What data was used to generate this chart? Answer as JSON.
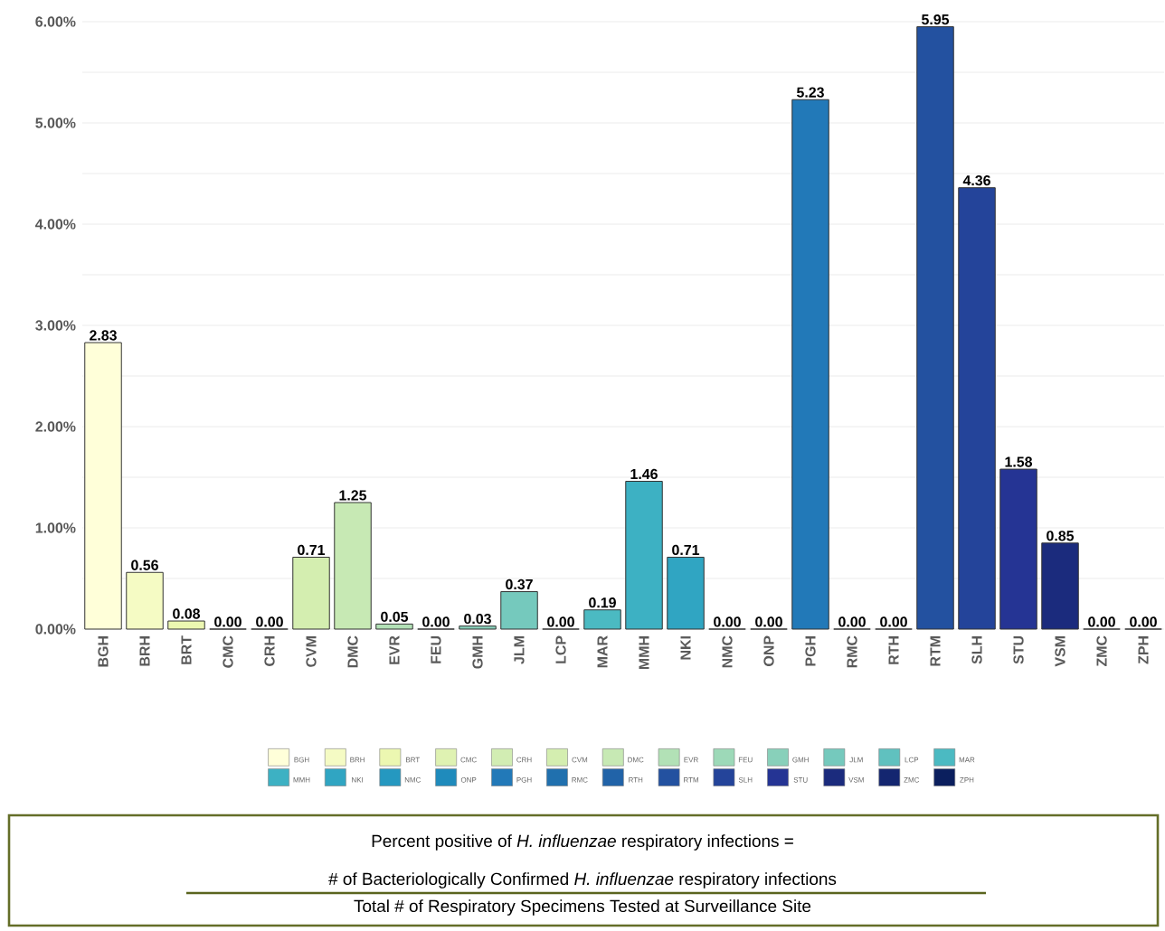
{
  "chart_data": {
    "type": "bar",
    "categories": [
      "BGH",
      "BRH",
      "BRT",
      "CMC",
      "CRH",
      "CVM",
      "DMC",
      "EVR",
      "FEU",
      "GMH",
      "JLM",
      "LCP",
      "MAR",
      "MMH",
      "NKI",
      "NMC",
      "ONP",
      "PGH",
      "RMC",
      "RTH",
      "RTM",
      "SLH",
      "STU",
      "VSM",
      "ZMC",
      "ZPH"
    ],
    "series": [
      {
        "name": "BGH",
        "color": "#ffffd9",
        "values": [
          2.83,
          null,
          null,
          null,
          null,
          null,
          null,
          null,
          null,
          null,
          null,
          null,
          null,
          null,
          null,
          null,
          null,
          null,
          null,
          null,
          null,
          null,
          null,
          null,
          null,
          null
        ],
        "value_labels": [
          "2.83",
          null,
          null,
          null,
          null,
          null,
          null,
          null,
          null,
          null,
          null,
          null,
          null,
          null,
          null,
          null,
          null,
          null,
          null,
          null,
          null,
          null,
          null,
          null,
          null,
          null
        ]
      },
      {
        "name": "BRH",
        "color": "#f5fbc4",
        "values": [
          null,
          0.56,
          null,
          null,
          null,
          null,
          null,
          null,
          null,
          null,
          null,
          null,
          null,
          null,
          null,
          null,
          null,
          null,
          null,
          null,
          null,
          null,
          null,
          null,
          null,
          null
        ],
        "value_labels": [
          null,
          "0.56",
          null,
          null,
          null,
          null,
          null,
          null,
          null,
          null,
          null,
          null,
          null,
          null,
          null,
          null,
          null,
          null,
          null,
          null,
          null,
          null,
          null,
          null,
          null,
          null
        ]
      },
      {
        "name": "BRT",
        "color": "#ecf7b1",
        "values": [
          null,
          null,
          0.08,
          null,
          null,
          null,
          null,
          null,
          null,
          null,
          null,
          null,
          null,
          null,
          null,
          null,
          null,
          null,
          null,
          null,
          null,
          null,
          null,
          null,
          null,
          null
        ],
        "value_labels": [
          null,
          null,
          "0.08",
          null,
          null,
          null,
          null,
          null,
          null,
          null,
          null,
          null,
          null,
          null,
          null,
          null,
          null,
          null,
          null,
          null,
          null,
          null,
          null,
          null,
          null,
          null
        ]
      },
      {
        "name": "CMC",
        "color": "#dff2b2",
        "values": [
          null,
          null,
          null,
          0,
          null,
          null,
          null,
          null,
          null,
          null,
          null,
          null,
          null,
          null,
          null,
          null,
          null,
          null,
          null,
          null,
          null,
          null,
          null,
          null,
          null,
          null
        ],
        "value_labels": [
          null,
          null,
          null,
          "0.00",
          null,
          null,
          null,
          null,
          null,
          null,
          null,
          null,
          null,
          null,
          null,
          null,
          null,
          null,
          null,
          null,
          null,
          null,
          null,
          null,
          null,
          null
        ]
      },
      {
        "name": "CRH",
        "color": "#d2edb3",
        "values": [
          null,
          null,
          null,
          null,
          0,
          null,
          null,
          null,
          null,
          null,
          null,
          null,
          null,
          null,
          null,
          null,
          null,
          null,
          null,
          null,
          null,
          null,
          null,
          null,
          null,
          null
        ],
        "value_labels": [
          null,
          null,
          null,
          null,
          "0.00",
          null,
          null,
          null,
          null,
          null,
          null,
          null,
          null,
          null,
          null,
          null,
          null,
          null,
          null,
          null,
          null,
          null,
          null,
          null,
          null,
          null
        ]
      },
      {
        "name": "CVM",
        "color": "#d4eeb0",
        "values": [
          null,
          null,
          null,
          null,
          null,
          0.71,
          null,
          null,
          null,
          null,
          null,
          null,
          null,
          null,
          null,
          null,
          null,
          null,
          null,
          null,
          null,
          null,
          null,
          null,
          null,
          null
        ],
        "value_labels": [
          null,
          null,
          null,
          null,
          null,
          "0.71",
          null,
          null,
          null,
          null,
          null,
          null,
          null,
          null,
          null,
          null,
          null,
          null,
          null,
          null,
          null,
          null,
          null,
          null,
          null,
          null
        ]
      },
      {
        "name": "DMC",
        "color": "#c7e9b4",
        "values": [
          null,
          null,
          null,
          null,
          null,
          null,
          1.25,
          null,
          null,
          null,
          null,
          null,
          null,
          null,
          null,
          null,
          null,
          null,
          null,
          null,
          null,
          null,
          null,
          null,
          null,
          null
        ],
        "value_labels": [
          null,
          null,
          null,
          null,
          null,
          null,
          "1.25",
          null,
          null,
          null,
          null,
          null,
          null,
          null,
          null,
          null,
          null,
          null,
          null,
          null,
          null,
          null,
          null,
          null,
          null,
          null
        ]
      },
      {
        "name": "EVR",
        "color": "#b2e1b6",
        "values": [
          null,
          null,
          null,
          null,
          null,
          null,
          null,
          0.05,
          null,
          null,
          null,
          null,
          null,
          null,
          null,
          null,
          null,
          null,
          null,
          null,
          null,
          null,
          null,
          null,
          null,
          null
        ],
        "value_labels": [
          null,
          null,
          null,
          null,
          null,
          null,
          null,
          "0.05",
          null,
          null,
          null,
          null,
          null,
          null,
          null,
          null,
          null,
          null,
          null,
          null,
          null,
          null,
          null,
          null,
          null,
          null
        ]
      },
      {
        "name": "FEU",
        "color": "#9dd9b8",
        "values": [
          null,
          null,
          null,
          null,
          null,
          null,
          null,
          null,
          0,
          null,
          null,
          null,
          null,
          null,
          null,
          null,
          null,
          null,
          null,
          null,
          null,
          null,
          null,
          null,
          null,
          null
        ],
        "value_labels": [
          null,
          null,
          null,
          null,
          null,
          null,
          null,
          null,
          "0.00",
          null,
          null,
          null,
          null,
          null,
          null,
          null,
          null,
          null,
          null,
          null,
          null,
          null,
          null,
          null,
          null,
          null
        ]
      },
      {
        "name": "GMH",
        "color": "#88d0ba",
        "values": [
          null,
          null,
          null,
          null,
          null,
          null,
          null,
          null,
          null,
          0.03,
          null,
          null,
          null,
          null,
          null,
          null,
          null,
          null,
          null,
          null,
          null,
          null,
          null,
          null,
          null,
          null
        ],
        "value_labels": [
          null,
          null,
          null,
          null,
          null,
          null,
          null,
          null,
          null,
          "0.03",
          null,
          null,
          null,
          null,
          null,
          null,
          null,
          null,
          null,
          null,
          null,
          null,
          null,
          null,
          null,
          null
        ]
      },
      {
        "name": "JLM",
        "color": "#75c9bd",
        "values": [
          null,
          null,
          null,
          null,
          null,
          null,
          null,
          null,
          null,
          null,
          0.37,
          null,
          null,
          null,
          null,
          null,
          null,
          null,
          null,
          null,
          null,
          null,
          null,
          null,
          null,
          null
        ],
        "value_labels": [
          null,
          null,
          null,
          null,
          null,
          null,
          null,
          null,
          null,
          null,
          "0.37",
          null,
          null,
          null,
          null,
          null,
          null,
          null,
          null,
          null,
          null,
          null,
          null,
          null,
          null,
          null
        ]
      },
      {
        "name": "LCP",
        "color": "#60c1bf",
        "values": [
          null,
          null,
          null,
          null,
          null,
          null,
          null,
          null,
          null,
          null,
          null,
          0,
          null,
          null,
          null,
          null,
          null,
          null,
          null,
          null,
          null,
          null,
          null,
          null,
          null,
          null
        ],
        "value_labels": [
          null,
          null,
          null,
          null,
          null,
          null,
          null,
          null,
          null,
          null,
          null,
          "0.00",
          null,
          null,
          null,
          null,
          null,
          null,
          null,
          null,
          null,
          null,
          null,
          null,
          null,
          null
        ]
      },
      {
        "name": "MAR",
        "color": "#4bbac2",
        "values": [
          null,
          null,
          null,
          null,
          null,
          null,
          null,
          null,
          null,
          null,
          null,
          null,
          0.19,
          null,
          null,
          null,
          null,
          null,
          null,
          null,
          null,
          null,
          null,
          null,
          null,
          null
        ],
        "value_labels": [
          null,
          null,
          null,
          null,
          null,
          null,
          null,
          null,
          null,
          null,
          null,
          null,
          "0.19",
          null,
          null,
          null,
          null,
          null,
          null,
          null,
          null,
          null,
          null,
          null,
          null,
          null
        ]
      },
      {
        "name": "MMH",
        "color": "#3db1c3",
        "values": [
          null,
          null,
          null,
          null,
          null,
          null,
          null,
          null,
          null,
          null,
          null,
          null,
          null,
          1.46,
          null,
          null,
          null,
          null,
          null,
          null,
          null,
          null,
          null,
          null,
          null,
          null
        ],
        "value_labels": [
          null,
          null,
          null,
          null,
          null,
          null,
          null,
          null,
          null,
          null,
          null,
          null,
          null,
          "1.46",
          null,
          null,
          null,
          null,
          null,
          null,
          null,
          null,
          null,
          null,
          null,
          null
        ]
      },
      {
        "name": "NKI",
        "color": "#30a5c2",
        "values": [
          null,
          null,
          null,
          null,
          null,
          null,
          null,
          null,
          null,
          null,
          null,
          null,
          null,
          null,
          0.71,
          null,
          null,
          null,
          null,
          null,
          null,
          null,
          null,
          null,
          null,
          null
        ],
        "value_labels": [
          null,
          null,
          null,
          null,
          null,
          null,
          null,
          null,
          null,
          null,
          null,
          null,
          null,
          null,
          "0.71",
          null,
          null,
          null,
          null,
          null,
          null,
          null,
          null,
          null,
          null,
          null
        ]
      },
      {
        "name": "NMC",
        "color": "#2598c0",
        "values": [
          null,
          null,
          null,
          null,
          null,
          null,
          null,
          null,
          null,
          null,
          null,
          null,
          null,
          null,
          null,
          0,
          null,
          null,
          null,
          null,
          null,
          null,
          null,
          null,
          null,
          null
        ],
        "value_labels": [
          null,
          null,
          null,
          null,
          null,
          null,
          null,
          null,
          null,
          null,
          null,
          null,
          null,
          null,
          null,
          "0.00",
          null,
          null,
          null,
          null,
          null,
          null,
          null,
          null,
          null,
          null
        ]
      },
      {
        "name": "ONP",
        "color": "#1f8bbc",
        "values": [
          null,
          null,
          null,
          null,
          null,
          null,
          null,
          null,
          null,
          null,
          null,
          null,
          null,
          null,
          null,
          null,
          0,
          null,
          null,
          null,
          null,
          null,
          null,
          null,
          null,
          null
        ],
        "value_labels": [
          null,
          null,
          null,
          null,
          null,
          null,
          null,
          null,
          null,
          null,
          null,
          null,
          null,
          null,
          null,
          null,
          "0.00",
          null,
          null,
          null,
          null,
          null,
          null,
          null,
          null,
          null
        ]
      },
      {
        "name": "PGH",
        "color": "#2279b8",
        "values": [
          null,
          null,
          null,
          null,
          null,
          null,
          null,
          null,
          null,
          null,
          null,
          null,
          null,
          null,
          null,
          null,
          null,
          5.23,
          null,
          null,
          null,
          null,
          null,
          null,
          null,
          null
        ],
        "value_labels": [
          null,
          null,
          null,
          null,
          null,
          null,
          null,
          null,
          null,
          null,
          null,
          null,
          null,
          null,
          null,
          null,
          null,
          "5.23",
          null,
          null,
          null,
          null,
          null,
          null,
          null,
          null
        ]
      },
      {
        "name": "RMC",
        "color": "#2070ae",
        "values": [
          null,
          null,
          null,
          null,
          null,
          null,
          null,
          null,
          null,
          null,
          null,
          null,
          null,
          null,
          null,
          null,
          null,
          null,
          0,
          null,
          null,
          null,
          null,
          null,
          null,
          null
        ],
        "value_labels": [
          null,
          null,
          null,
          null,
          null,
          null,
          null,
          null,
          null,
          null,
          null,
          null,
          null,
          null,
          null,
          null,
          null,
          null,
          "0.00",
          null,
          null,
          null,
          null,
          null,
          null,
          null
        ]
      },
      {
        "name": "RTH",
        "color": "#2163a8",
        "values": [
          null,
          null,
          null,
          null,
          null,
          null,
          null,
          null,
          null,
          null,
          null,
          null,
          null,
          null,
          null,
          null,
          null,
          null,
          null,
          0,
          null,
          null,
          null,
          null,
          null,
          null
        ],
        "value_labels": [
          null,
          null,
          null,
          null,
          null,
          null,
          null,
          null,
          null,
          null,
          null,
          null,
          null,
          null,
          null,
          null,
          null,
          null,
          null,
          "0.00",
          null,
          null,
          null,
          null,
          null,
          null
        ]
      },
      {
        "name": "RTM",
        "color": "#2351a0",
        "values": [
          null,
          null,
          null,
          null,
          null,
          null,
          null,
          null,
          null,
          null,
          null,
          null,
          null,
          null,
          null,
          null,
          null,
          null,
          null,
          null,
          5.95,
          null,
          null,
          null,
          null,
          null
        ],
        "value_labels": [
          null,
          null,
          null,
          null,
          null,
          null,
          null,
          null,
          null,
          null,
          null,
          null,
          null,
          null,
          null,
          null,
          null,
          null,
          null,
          null,
          "5.95",
          null,
          null,
          null,
          null,
          null
        ]
      },
      {
        "name": "SLH",
        "color": "#24449a",
        "values": [
          null,
          null,
          null,
          null,
          null,
          null,
          null,
          null,
          null,
          null,
          null,
          null,
          null,
          null,
          null,
          null,
          null,
          null,
          null,
          null,
          null,
          4.36,
          null,
          null,
          null,
          null
        ],
        "value_labels": [
          null,
          null,
          null,
          null,
          null,
          null,
          null,
          null,
          null,
          null,
          null,
          null,
          null,
          null,
          null,
          null,
          null,
          null,
          null,
          null,
          null,
          "4.36",
          null,
          null,
          null,
          null
        ]
      },
      {
        "name": "STU",
        "color": "#253494",
        "values": [
          null,
          null,
          null,
          null,
          null,
          null,
          null,
          null,
          null,
          null,
          null,
          null,
          null,
          null,
          null,
          null,
          null,
          null,
          null,
          null,
          null,
          null,
          1.58,
          null,
          null,
          null
        ],
        "value_labels": [
          null,
          null,
          null,
          null,
          null,
          null,
          null,
          null,
          null,
          null,
          null,
          null,
          null,
          null,
          null,
          null,
          null,
          null,
          null,
          null,
          null,
          null,
          "1.58",
          null,
          null,
          null
        ]
      },
      {
        "name": "VSM",
        "color": "#1b2b7d",
        "values": [
          null,
          null,
          null,
          null,
          null,
          null,
          null,
          null,
          null,
          null,
          null,
          null,
          null,
          null,
          null,
          null,
          null,
          null,
          null,
          null,
          null,
          null,
          null,
          0.85,
          null,
          null
        ],
        "value_labels": [
          null,
          null,
          null,
          null,
          null,
          null,
          null,
          null,
          null,
          null,
          null,
          null,
          null,
          null,
          null,
          null,
          null,
          null,
          null,
          null,
          null,
          null,
          null,
          "0.85",
          null,
          null
        ]
      },
      {
        "name": "ZMC",
        "color": "#142670",
        "values": [
          null,
          null,
          null,
          null,
          null,
          null,
          null,
          null,
          null,
          null,
          null,
          null,
          null,
          null,
          null,
          null,
          null,
          null,
          null,
          null,
          null,
          null,
          null,
          null,
          0,
          null
        ],
        "value_labels": [
          null,
          null,
          null,
          null,
          null,
          null,
          null,
          null,
          null,
          null,
          null,
          null,
          null,
          null,
          null,
          null,
          null,
          null,
          null,
          null,
          null,
          null,
          null,
          null,
          "0.00",
          null
        ]
      },
      {
        "name": "ZPH",
        "color": "#0b1f5e",
        "values": [
          null,
          null,
          null,
          null,
          null,
          null,
          null,
          null,
          null,
          null,
          null,
          null,
          null,
          null,
          null,
          null,
          null,
          null,
          null,
          null,
          null,
          null,
          null,
          null,
          null,
          0
        ],
        "value_labels": [
          null,
          null,
          null,
          null,
          null,
          null,
          null,
          null,
          null,
          null,
          null,
          null,
          null,
          null,
          null,
          null,
          null,
          null,
          null,
          null,
          null,
          null,
          null,
          null,
          null,
          "0.00"
        ]
      }
    ],
    "ylim": [
      0,
      6
    ],
    "yticks": [
      {
        "value": 0,
        "label": "0.00%"
      },
      {
        "value": 0.5,
        "label": null
      },
      {
        "value": 1,
        "label": "1.00%"
      },
      {
        "value": 1.5,
        "label": null
      },
      {
        "value": 2,
        "label": "2.00%"
      },
      {
        "value": 2.5,
        "label": null
      },
      {
        "value": 3,
        "label": "3.00%"
      },
      {
        "value": 3.5,
        "label": null
      },
      {
        "value": 4,
        "label": "4.00%"
      },
      {
        "value": 4.5,
        "label": null
      },
      {
        "value": 5,
        "label": "5.00%"
      },
      {
        "value": 5.5,
        "label": null
      },
      {
        "value": 6,
        "label": "6.00%"
      }
    ],
    "grid": "y",
    "legend": "bottom",
    "annotations": [
      "Percent positive of *H. influenzae* respiratory infections =",
      "# of Bacteriologically Confirmed *H. influenzae* respiratory infections",
      "Total # of Respiratory Specimens Tested at Surveillance Site"
    ]
  }
}
